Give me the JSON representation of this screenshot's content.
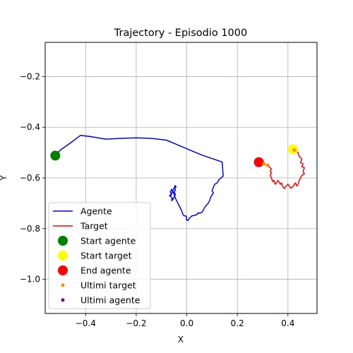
{
  "chart_data": {
    "type": "line",
    "title": "Trajectory - Episodio 1000",
    "xlabel": "X",
    "ylabel": "Y",
    "xlim": [
      -0.56,
      0.515
    ],
    "ylim": [
      -1.135,
      -0.065
    ],
    "xticks": [
      -0.4,
      -0.2,
      0.0,
      0.2,
      0.4
    ],
    "xtick_labels": [
      "−0.4",
      "−0.2",
      "0.0",
      "0.2",
      "0.4"
    ],
    "yticks": [
      -0.2,
      -0.4,
      -0.6,
      -0.8,
      -1.0
    ],
    "ytick_labels": [
      "−0.2",
      "−0.4",
      "−0.6",
      "−0.8",
      "−1.0"
    ],
    "grid": true,
    "legend_position": "lower-left",
    "series": [
      {
        "name": "Agente",
        "kind": "line",
        "color": "#0000ff",
        "points": [
          [
            -0.52,
            -0.512
          ],
          [
            -0.5,
            -0.49
          ],
          [
            -0.46,
            -0.462
          ],
          [
            -0.42,
            -0.432
          ],
          [
            -0.38,
            -0.437
          ],
          [
            -0.32,
            -0.447
          ],
          [
            -0.26,
            -0.444
          ],
          [
            -0.2,
            -0.442
          ],
          [
            -0.14,
            -0.444
          ],
          [
            -0.08,
            -0.451
          ],
          [
            -0.04,
            -0.468
          ],
          [
            0.0,
            -0.485
          ],
          [
            0.06,
            -0.51
          ],
          [
            0.14,
            -0.537
          ],
          [
            0.142,
            -0.565
          ],
          [
            0.144,
            -0.593
          ],
          [
            0.128,
            -0.606
          ],
          [
            0.12,
            -0.62
          ],
          [
            0.11,
            -0.625
          ],
          [
            0.1,
            -0.65
          ],
          [
            0.105,
            -0.66
          ],
          [
            0.095,
            -0.675
          ],
          [
            0.09,
            -0.69
          ],
          [
            0.085,
            -0.7
          ],
          [
            0.08,
            -0.705
          ],
          [
            0.07,
            -0.718
          ],
          [
            0.065,
            -0.728
          ],
          [
            0.06,
            -0.735
          ],
          [
            0.05,
            -0.74
          ],
          [
            0.045,
            -0.738
          ],
          [
            0.04,
            -0.745
          ],
          [
            0.03,
            -0.748
          ],
          [
            0.02,
            -0.75
          ],
          [
            0.015,
            -0.755
          ],
          [
            0.01,
            -0.76
          ],
          [
            0.005,
            -0.768
          ],
          [
            -0.002,
            -0.765
          ],
          [
            0.0,
            -0.755
          ],
          [
            -0.005,
            -0.75
          ],
          [
            -0.01,
            -0.75
          ],
          [
            -0.015,
            -0.745
          ],
          [
            -0.02,
            -0.73
          ],
          [
            -0.025,
            -0.72
          ],
          [
            -0.03,
            -0.71
          ],
          [
            -0.035,
            -0.7
          ],
          [
            -0.04,
            -0.69
          ],
          [
            -0.045,
            -0.68
          ],
          [
            -0.05,
            -0.665
          ],
          [
            -0.055,
            -0.655
          ],
          [
            -0.06,
            -0.645
          ],
          [
            -0.065,
            -0.655
          ],
          [
            -0.06,
            -0.665
          ],
          [
            -0.065,
            -0.672
          ],
          [
            -0.058,
            -0.68
          ],
          [
            -0.06,
            -0.69
          ],
          [
            -0.055,
            -0.685
          ],
          [
            -0.05,
            -0.675
          ],
          [
            -0.045,
            -0.665
          ],
          [
            -0.05,
            -0.655
          ],
          [
            -0.045,
            -0.648
          ],
          [
            -0.048,
            -0.64
          ],
          [
            -0.042,
            -0.635
          ],
          [
            -0.046,
            -0.63
          ],
          [
            -0.05,
            -0.64
          ],
          [
            -0.055,
            -0.65
          ],
          [
            -0.06,
            -0.66
          ],
          [
            -0.065,
            -0.668
          ],
          [
            -0.07,
            -0.672
          ]
        ]
      },
      {
        "name": "Target",
        "kind": "line",
        "color": "#ff0000",
        "points": [
          [
            0.42,
            -0.487
          ],
          [
            0.43,
            -0.49
          ],
          [
            0.44,
            -0.5
          ],
          [
            0.445,
            -0.515
          ],
          [
            0.455,
            -0.525
          ],
          [
            0.45,
            -0.54
          ],
          [
            0.46,
            -0.545
          ],
          [
            0.455,
            -0.555
          ],
          [
            0.465,
            -0.56
          ],
          [
            0.46,
            -0.575
          ],
          [
            0.465,
            -0.585
          ],
          [
            0.455,
            -0.59
          ],
          [
            0.45,
            -0.6
          ],
          [
            0.445,
            -0.61
          ],
          [
            0.44,
            -0.625
          ],
          [
            0.435,
            -0.632
          ],
          [
            0.43,
            -0.62
          ],
          [
            0.425,
            -0.625
          ],
          [
            0.42,
            -0.635
          ],
          [
            0.41,
            -0.64
          ],
          [
            0.405,
            -0.63
          ],
          [
            0.4,
            -0.625
          ],
          [
            0.395,
            -0.63
          ],
          [
            0.385,
            -0.642
          ],
          [
            0.38,
            -0.635
          ],
          [
            0.375,
            -0.62
          ],
          [
            0.37,
            -0.625
          ],
          [
            0.365,
            -0.615
          ],
          [
            0.36,
            -0.61
          ],
          [
            0.355,
            -0.62
          ],
          [
            0.35,
            -0.625
          ],
          [
            0.345,
            -0.61
          ],
          [
            0.34,
            -0.615
          ],
          [
            0.335,
            -0.6
          ],
          [
            0.33,
            -0.59
          ],
          [
            0.335,
            -0.58
          ],
          [
            0.33,
            -0.575
          ],
          [
            0.335,
            -0.565
          ],
          [
            0.33,
            -0.56
          ],
          [
            0.325,
            -0.555
          ],
          [
            0.32,
            -0.552
          ],
          [
            0.315,
            -0.55
          ]
        ]
      },
      {
        "name": "Start agente",
        "kind": "marker",
        "color": "#008000",
        "size": 7,
        "points": [
          [
            -0.52,
            -0.512
          ]
        ]
      },
      {
        "name": "Start target",
        "kind": "marker",
        "color": "#ffff00",
        "size": 7,
        "points": [
          [
            0.42,
            -0.487
          ]
        ]
      },
      {
        "name": "End agente",
        "kind": "marker",
        "color": "#ff0000",
        "size": 7,
        "points": [
          [
            0.285,
            -0.538
          ]
        ]
      },
      {
        "name": "Ultimi target",
        "kind": "marker",
        "color": "#ff8c00",
        "size": 2.5,
        "points": [
          [
            0.425,
            -0.49
          ],
          [
            0.32,
            -0.55
          ],
          [
            0.305,
            -0.545
          ]
        ]
      },
      {
        "name": "Ultimi agente",
        "kind": "marker",
        "color": "#800080",
        "size": 2.5,
        "points": []
      }
    ]
  }
}
